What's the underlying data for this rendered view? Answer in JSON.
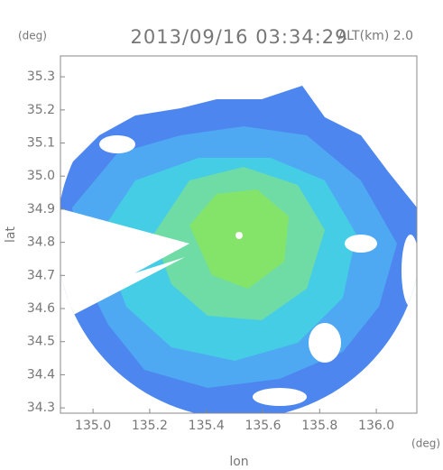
{
  "chart_data": {
    "type": "map",
    "title": "2013/09/16 03:34:29",
    "subtitle": "ALT(km) 2.0",
    "x_label": "lon",
    "y_label": "lat",
    "x_unit": "(deg)",
    "y_unit": "(deg)",
    "xlim": [
      134.885,
      136.143
    ],
    "ylim": [
      34.284,
      35.363
    ],
    "xticks": [
      {
        "value": 135,
        "label": "135.0"
      },
      135.2,
      135.4,
      135.6,
      135.8,
      {
        "value": 136,
        "label": "136.0"
      }
    ],
    "yticks": [
      34.3,
      34.4,
      34.5,
      34.6,
      34.7,
      34.8,
      34.9,
      {
        "value": 35,
        "label": "35.0"
      },
      35.1,
      35.2,
      35.3
    ]
  }
}
